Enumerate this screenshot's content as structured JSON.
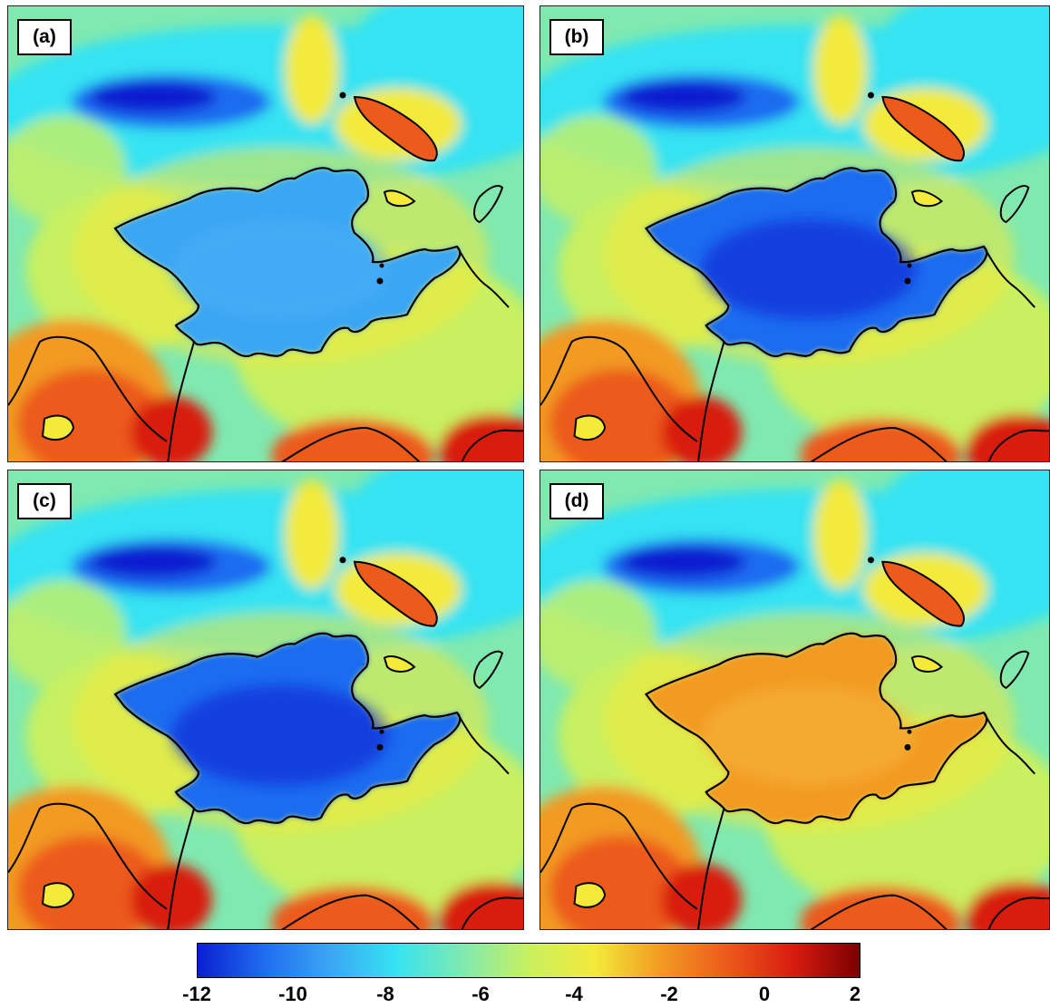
{
  "panels": [
    {
      "label": "(a)",
      "lake_level": "blue-light"
    },
    {
      "label": "(b)",
      "lake_level": "blue-deep"
    },
    {
      "label": "(c)",
      "lake_level": "blue-deep"
    },
    {
      "label": "(d)",
      "lake_level": "orange"
    }
  ],
  "colorbar": {
    "min": -12,
    "max": 2,
    "ticks": [
      "-12",
      "-10",
      "-8",
      "-6",
      "-4",
      "-2",
      "0",
      "2"
    ],
    "colormap": "jet"
  },
  "colors": {
    "deep_blue": "#0a1fd0",
    "blue": "#1f6cf0",
    "light_blue": "#3aa6f4",
    "cyan": "#36e3f2",
    "aqua_green": "#7fe9b0",
    "yellow_green": "#c8f060",
    "yellow": "#f3ea3a",
    "orange": "#f29a22",
    "red_orange": "#ec5a1c",
    "red": "#d81c10",
    "dark_red": "#7a0000"
  }
}
